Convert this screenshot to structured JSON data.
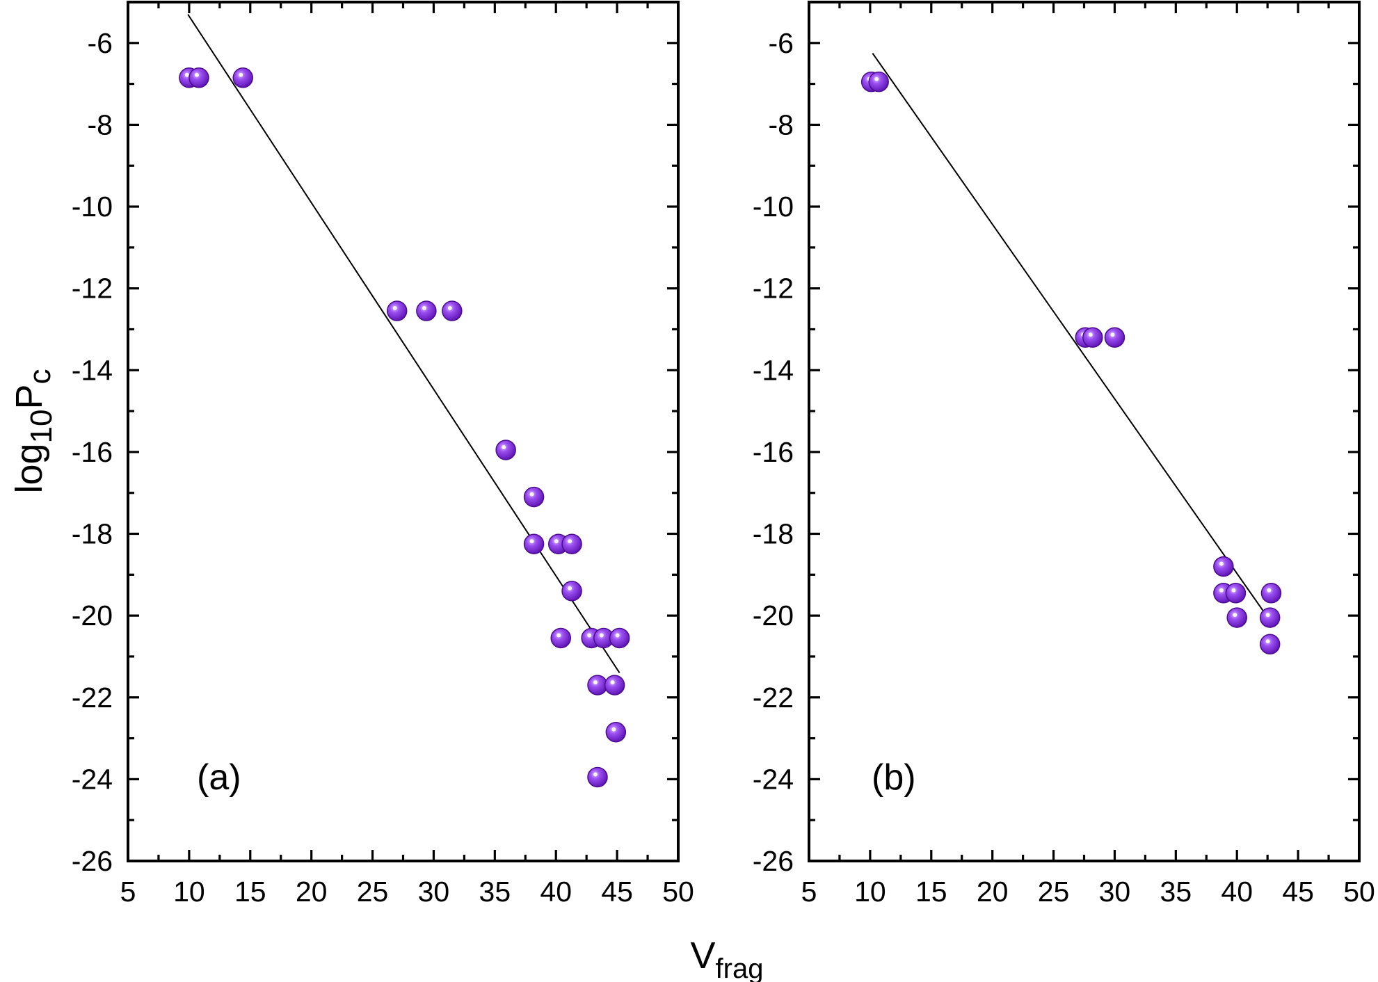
{
  "colors": {
    "marker_fill": "#8f3de4",
    "marker_edge": "#4b0b8f",
    "line": "#000000",
    "axes": "#000000"
  },
  "axis_titles": {
    "ylabel_main": "log",
    "ylabel_sub": "10",
    "ylabel_tail": "P",
    "ylabel_tail_sub": "c",
    "xlabel_main": "V",
    "xlabel_sub": "frag"
  },
  "chart_data": [
    {
      "type": "scatter",
      "panel_label": "(a)",
      "xlim": [
        5,
        50
      ],
      "ylim": [
        -26,
        -5
      ],
      "x_ticks": [
        5,
        10,
        15,
        20,
        25,
        30,
        35,
        40,
        45,
        50
      ],
      "y_ticks": [
        -26,
        -24,
        -22,
        -20,
        -18,
        -16,
        -14,
        -12,
        -10,
        -8,
        -6
      ],
      "grid": false,
      "points": [
        {
          "x": 10.0,
          "y": -6.85
        },
        {
          "x": 10.8,
          "y": -6.85
        },
        {
          "x": 14.4,
          "y": -6.85
        },
        {
          "x": 27.0,
          "y": -12.55
        },
        {
          "x": 29.4,
          "y": -12.55
        },
        {
          "x": 31.5,
          "y": -12.55
        },
        {
          "x": 35.9,
          "y": -15.95
        },
        {
          "x": 38.2,
          "y": -17.1
        },
        {
          "x": 38.2,
          "y": -18.25
        },
        {
          "x": 40.2,
          "y": -18.25
        },
        {
          "x": 41.3,
          "y": -18.25
        },
        {
          "x": 41.3,
          "y": -19.4
        },
        {
          "x": 40.4,
          "y": -20.55
        },
        {
          "x": 42.9,
          "y": -20.55
        },
        {
          "x": 43.9,
          "y": -20.55
        },
        {
          "x": 45.2,
          "y": -20.55
        },
        {
          "x": 43.4,
          "y": -21.7
        },
        {
          "x": 44.8,
          "y": -21.7
        },
        {
          "x": 44.9,
          "y": -22.85
        },
        {
          "x": 43.4,
          "y": -23.95
        }
      ],
      "fit_line": {
        "x": [
          9.9,
          45.2
        ],
        "y": [
          -5.3,
          -21.4
        ]
      }
    },
    {
      "type": "scatter",
      "panel_label": "(b)",
      "xlim": [
        5,
        50
      ],
      "ylim": [
        -26,
        -5
      ],
      "x_ticks": [
        5,
        10,
        15,
        20,
        25,
        30,
        35,
        40,
        45,
        50
      ],
      "y_ticks": [
        -26,
        -24,
        -22,
        -20,
        -18,
        -16,
        -14,
        -12,
        -10,
        -8,
        -6
      ],
      "grid": false,
      "points": [
        {
          "x": 10.1,
          "y": -6.95
        },
        {
          "x": 10.7,
          "y": -6.95
        },
        {
          "x": 27.6,
          "y": -13.2
        },
        {
          "x": 28.2,
          "y": -13.2
        },
        {
          "x": 30.0,
          "y": -13.2
        },
        {
          "x": 38.9,
          "y": -18.8
        },
        {
          "x": 38.9,
          "y": -19.45
        },
        {
          "x": 39.9,
          "y": -19.45
        },
        {
          "x": 42.8,
          "y": -19.45
        },
        {
          "x": 40.0,
          "y": -20.05
        },
        {
          "x": 42.7,
          "y": -20.05
        },
        {
          "x": 42.7,
          "y": -20.7
        }
      ],
      "fit_line": {
        "x": [
          10.2,
          43.0
        ],
        "y": [
          -6.25,
          -20.25
        ]
      }
    }
  ]
}
